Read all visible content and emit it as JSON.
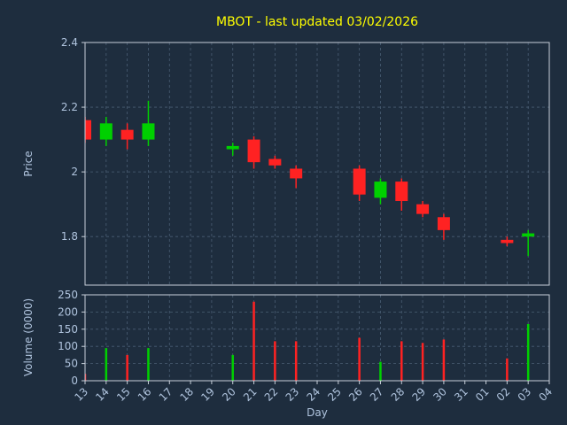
{
  "chart_data": {
    "type": "candlestick",
    "title": "MBOT - last updated 03/02/2026",
    "xlabel": "Day",
    "price_axis": {
      "label": "Price",
      "ylim": [
        1.65,
        2.4
      ],
      "ticks": [
        1.8,
        2,
        2.2,
        2.4
      ]
    },
    "volume_axis": {
      "label": "Volume (0000)",
      "ylim": [
        0,
        250
      ],
      "ticks": [
        0,
        50,
        100,
        150,
        200,
        250
      ]
    },
    "x_labels": [
      "13",
      "14",
      "15",
      "16",
      "17",
      "18",
      "19",
      "20",
      "21",
      "22",
      "23",
      "24",
      "25",
      "26",
      "27",
      "28",
      "29",
      "30",
      "31",
      "01",
      "02",
      "03",
      "04"
    ],
    "grid": true,
    "legend": false,
    "candles": [
      {
        "day": "13",
        "open": 2.16,
        "high": 2.17,
        "low": 2.09,
        "close": 2.1
      },
      {
        "day": "14",
        "open": 2.1,
        "high": 2.17,
        "low": 2.08,
        "close": 2.15
      },
      {
        "day": "15",
        "open": 2.13,
        "high": 2.15,
        "low": 2.07,
        "close": 2.1
      },
      {
        "day": "16",
        "open": 2.1,
        "high": 2.22,
        "low": 2.08,
        "close": 2.15
      },
      {
        "day": "20",
        "open": 2.07,
        "high": 2.09,
        "low": 2.05,
        "close": 2.08
      },
      {
        "day": "21",
        "open": 2.1,
        "high": 2.11,
        "low": 2.01,
        "close": 2.03
      },
      {
        "day": "22",
        "open": 2.04,
        "high": 2.05,
        "low": 2.01,
        "close": 2.02
      },
      {
        "day": "23",
        "open": 2.01,
        "high": 2.02,
        "low": 1.95,
        "close": 1.98
      },
      {
        "day": "26",
        "open": 2.01,
        "high": 2.02,
        "low": 1.91,
        "close": 1.93
      },
      {
        "day": "27",
        "open": 1.92,
        "high": 1.98,
        "low": 1.9,
        "close": 1.97
      },
      {
        "day": "28",
        "open": 1.97,
        "high": 1.98,
        "low": 1.88,
        "close": 1.91
      },
      {
        "day": "29",
        "open": 1.9,
        "high": 1.91,
        "low": 1.86,
        "close": 1.87
      },
      {
        "day": "30",
        "open": 1.86,
        "high": 1.87,
        "low": 1.79,
        "close": 1.82
      },
      {
        "day": "02",
        "open": 1.79,
        "high": 1.8,
        "low": 1.77,
        "close": 1.78
      },
      {
        "day": "03",
        "open": 1.8,
        "high": 1.82,
        "low": 1.74,
        "close": 1.81
      }
    ],
    "volumes": [
      {
        "day": "13",
        "value": 20
      },
      {
        "day": "14",
        "value": 95
      },
      {
        "day": "15",
        "value": 75
      },
      {
        "day": "16",
        "value": 95
      },
      {
        "day": "20",
        "value": 75
      },
      {
        "day": "21",
        "value": 230
      },
      {
        "day": "22",
        "value": 115
      },
      {
        "day": "23",
        "value": 115
      },
      {
        "day": "26",
        "value": 125
      },
      {
        "day": "27",
        "value": 55
      },
      {
        "day": "28",
        "value": 115
      },
      {
        "day": "29",
        "value": 110
      },
      {
        "day": "30",
        "value": 120
      },
      {
        "day": "02",
        "value": 65
      },
      {
        "day": "03",
        "value": 165
      }
    ],
    "colors": {
      "background": "#1e2d3e",
      "grid": "#4a5e74",
      "axis": "#c8d0da",
      "tick_label": "#b0c4de",
      "title": "#ffff00",
      "up": "#00d000",
      "down": "#ff2222"
    }
  }
}
